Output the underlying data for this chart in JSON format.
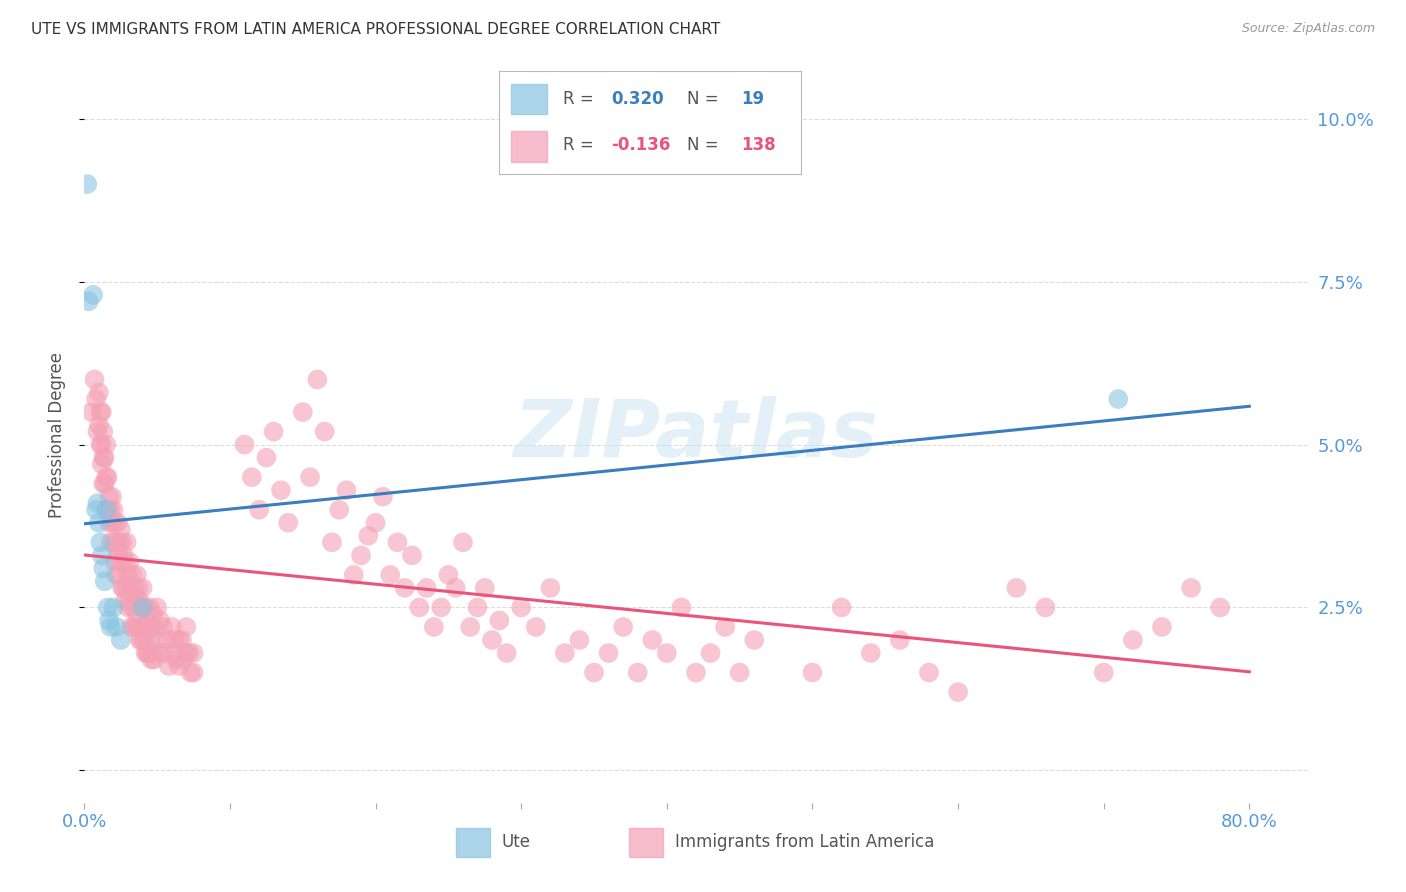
{
  "title": "UTE VS IMMIGRANTS FROM LATIN AMERICA PROFESSIONAL DEGREE CORRELATION CHART",
  "source": "Source: ZipAtlas.com",
  "ylabel": "Professional Degree",
  "yticks": [
    0.0,
    0.025,
    0.05,
    0.075,
    0.1
  ],
  "ytick_labels": [
    "",
    "2.5%",
    "5.0%",
    "7.5%",
    "10.0%"
  ],
  "xlim": [
    0.0,
    0.84
  ],
  "ylim": [
    -0.005,
    0.108
  ],
  "ute_color": "#89c4e1",
  "immig_color": "#f4a0b5",
  "trendline_ute_color": "#3a7ebf",
  "trendline_immig_color": "#e8547a",
  "background_color": "#ffffff",
  "grid_color": "#dddddd",
  "watermark_text": "ZIPatlas",
  "ute_points": [
    [
      0.002,
      0.09
    ],
    [
      0.003,
      0.072
    ],
    [
      0.006,
      0.073
    ],
    [
      0.008,
      0.04
    ],
    [
      0.009,
      0.041
    ],
    [
      0.01,
      0.038
    ],
    [
      0.011,
      0.035
    ],
    [
      0.012,
      0.033
    ],
    [
      0.013,
      0.031
    ],
    [
      0.014,
      0.029
    ],
    [
      0.015,
      0.04
    ],
    [
      0.016,
      0.025
    ],
    [
      0.017,
      0.023
    ],
    [
      0.018,
      0.022
    ],
    [
      0.02,
      0.025
    ],
    [
      0.022,
      0.022
    ],
    [
      0.025,
      0.02
    ],
    [
      0.04,
      0.025
    ],
    [
      0.71,
      0.057
    ]
  ],
  "immig_points": [
    [
      0.005,
      0.055
    ],
    [
      0.007,
      0.06
    ],
    [
      0.008,
      0.057
    ],
    [
      0.009,
      0.052
    ],
    [
      0.01,
      0.058
    ],
    [
      0.01,
      0.053
    ],
    [
      0.011,
      0.055
    ],
    [
      0.011,
      0.05
    ],
    [
      0.012,
      0.055
    ],
    [
      0.012,
      0.05
    ],
    [
      0.012,
      0.047
    ],
    [
      0.013,
      0.052
    ],
    [
      0.013,
      0.048
    ],
    [
      0.013,
      0.044
    ],
    [
      0.014,
      0.048
    ],
    [
      0.014,
      0.044
    ],
    [
      0.015,
      0.05
    ],
    [
      0.015,
      0.045
    ],
    [
      0.015,
      0.04
    ],
    [
      0.016,
      0.045
    ],
    [
      0.016,
      0.04
    ],
    [
      0.017,
      0.042
    ],
    [
      0.017,
      0.038
    ],
    [
      0.018,
      0.04
    ],
    [
      0.018,
      0.035
    ],
    [
      0.019,
      0.042
    ],
    [
      0.019,
      0.038
    ],
    [
      0.02,
      0.04
    ],
    [
      0.02,
      0.035
    ],
    [
      0.021,
      0.038
    ],
    [
      0.021,
      0.032
    ],
    [
      0.022,
      0.035
    ],
    [
      0.022,
      0.03
    ],
    [
      0.023,
      0.038
    ],
    [
      0.023,
      0.033
    ],
    [
      0.024,
      0.035
    ],
    [
      0.024,
      0.03
    ],
    [
      0.025,
      0.037
    ],
    [
      0.025,
      0.032
    ],
    [
      0.026,
      0.035
    ],
    [
      0.026,
      0.028
    ],
    [
      0.027,
      0.033
    ],
    [
      0.027,
      0.028
    ],
    [
      0.028,
      0.032
    ],
    [
      0.028,
      0.026
    ],
    [
      0.029,
      0.035
    ],
    [
      0.029,
      0.028
    ],
    [
      0.03,
      0.03
    ],
    [
      0.03,
      0.025
    ],
    [
      0.031,
      0.032
    ],
    [
      0.031,
      0.026
    ],
    [
      0.032,
      0.028
    ],
    [
      0.032,
      0.022
    ],
    [
      0.033,
      0.03
    ],
    [
      0.033,
      0.025
    ],
    [
      0.034,
      0.028
    ],
    [
      0.034,
      0.022
    ],
    [
      0.035,
      0.027
    ],
    [
      0.035,
      0.022
    ],
    [
      0.036,
      0.03
    ],
    [
      0.036,
      0.024
    ],
    [
      0.037,
      0.028
    ],
    [
      0.037,
      0.022
    ],
    [
      0.038,
      0.026
    ],
    [
      0.038,
      0.02
    ],
    [
      0.039,
      0.025
    ],
    [
      0.039,
      0.02
    ],
    [
      0.04,
      0.028
    ],
    [
      0.04,
      0.022
    ],
    [
      0.041,
      0.025
    ],
    [
      0.041,
      0.02
    ],
    [
      0.042,
      0.025
    ],
    [
      0.042,
      0.018
    ],
    [
      0.043,
      0.023
    ],
    [
      0.043,
      0.018
    ],
    [
      0.044,
      0.022
    ],
    [
      0.044,
      0.018
    ],
    [
      0.045,
      0.025
    ],
    [
      0.045,
      0.02
    ],
    [
      0.046,
      0.022
    ],
    [
      0.046,
      0.017
    ],
    [
      0.047,
      0.024
    ],
    [
      0.047,
      0.018
    ],
    [
      0.048,
      0.022
    ],
    [
      0.048,
      0.017
    ],
    [
      0.05,
      0.025
    ],
    [
      0.05,
      0.02
    ],
    [
      0.052,
      0.023
    ],
    [
      0.052,
      0.018
    ],
    [
      0.054,
      0.022
    ],
    [
      0.055,
      0.018
    ],
    [
      0.057,
      0.02
    ],
    [
      0.058,
      0.016
    ],
    [
      0.06,
      0.022
    ],
    [
      0.061,
      0.018
    ],
    [
      0.062,
      0.02
    ],
    [
      0.063,
      0.017
    ],
    [
      0.065,
      0.02
    ],
    [
      0.065,
      0.016
    ],
    [
      0.067,
      0.02
    ],
    [
      0.068,
      0.017
    ],
    [
      0.07,
      0.022
    ],
    [
      0.07,
      0.018
    ],
    [
      0.072,
      0.018
    ],
    [
      0.073,
      0.015
    ],
    [
      0.075,
      0.018
    ],
    [
      0.075,
      0.015
    ],
    [
      0.11,
      0.05
    ],
    [
      0.115,
      0.045
    ],
    [
      0.12,
      0.04
    ],
    [
      0.125,
      0.048
    ],
    [
      0.13,
      0.052
    ],
    [
      0.135,
      0.043
    ],
    [
      0.14,
      0.038
    ],
    [
      0.15,
      0.055
    ],
    [
      0.155,
      0.045
    ],
    [
      0.16,
      0.06
    ],
    [
      0.165,
      0.052
    ],
    [
      0.17,
      0.035
    ],
    [
      0.175,
      0.04
    ],
    [
      0.18,
      0.043
    ],
    [
      0.185,
      0.03
    ],
    [
      0.19,
      0.033
    ],
    [
      0.195,
      0.036
    ],
    [
      0.2,
      0.038
    ],
    [
      0.205,
      0.042
    ],
    [
      0.21,
      0.03
    ],
    [
      0.215,
      0.035
    ],
    [
      0.22,
      0.028
    ],
    [
      0.225,
      0.033
    ],
    [
      0.23,
      0.025
    ],
    [
      0.235,
      0.028
    ],
    [
      0.24,
      0.022
    ],
    [
      0.245,
      0.025
    ],
    [
      0.25,
      0.03
    ],
    [
      0.255,
      0.028
    ],
    [
      0.26,
      0.035
    ],
    [
      0.265,
      0.022
    ],
    [
      0.27,
      0.025
    ],
    [
      0.275,
      0.028
    ],
    [
      0.28,
      0.02
    ],
    [
      0.285,
      0.023
    ],
    [
      0.29,
      0.018
    ],
    [
      0.3,
      0.025
    ],
    [
      0.31,
      0.022
    ],
    [
      0.32,
      0.028
    ],
    [
      0.33,
      0.018
    ],
    [
      0.34,
      0.02
    ],
    [
      0.35,
      0.015
    ],
    [
      0.36,
      0.018
    ],
    [
      0.37,
      0.022
    ],
    [
      0.38,
      0.015
    ],
    [
      0.39,
      0.02
    ],
    [
      0.4,
      0.018
    ],
    [
      0.41,
      0.025
    ],
    [
      0.42,
      0.015
    ],
    [
      0.43,
      0.018
    ],
    [
      0.44,
      0.022
    ],
    [
      0.45,
      0.015
    ],
    [
      0.46,
      0.02
    ],
    [
      0.5,
      0.015
    ],
    [
      0.52,
      0.025
    ],
    [
      0.54,
      0.018
    ],
    [
      0.56,
      0.02
    ],
    [
      0.58,
      0.015
    ],
    [
      0.6,
      0.012
    ],
    [
      0.64,
      0.028
    ],
    [
      0.66,
      0.025
    ],
    [
      0.7,
      0.015
    ],
    [
      0.72,
      0.02
    ],
    [
      0.74,
      0.022
    ],
    [
      0.76,
      0.028
    ],
    [
      0.78,
      0.025
    ]
  ]
}
